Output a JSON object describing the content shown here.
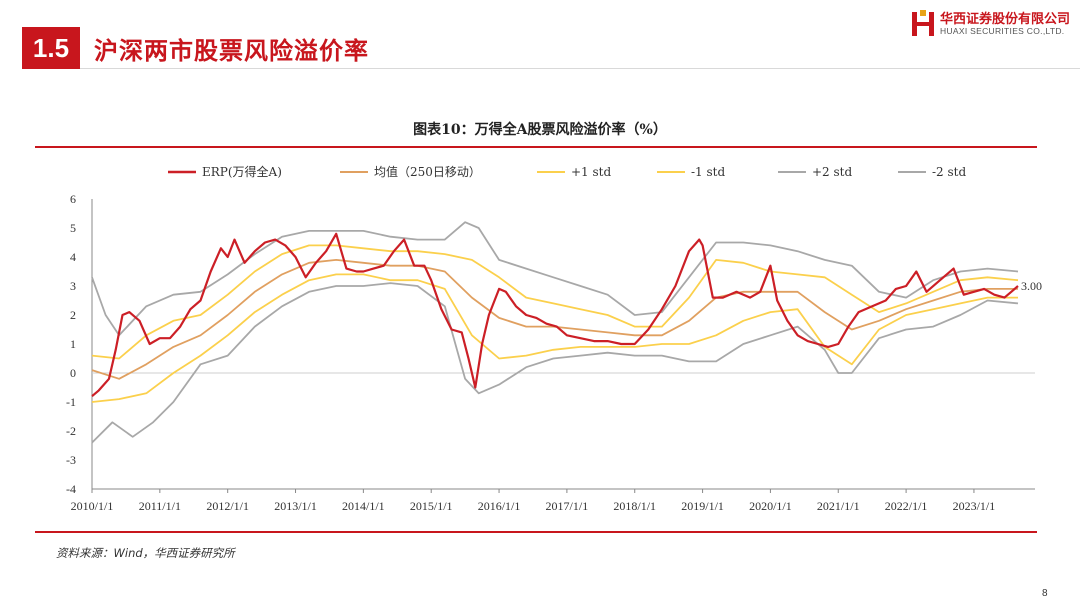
{
  "header": {
    "section_number": "1.5",
    "section_title": "沪深两市股票风险溢价率",
    "logo_cn": "华西证券股份有限公司",
    "logo_en": "HUAXI SECURITIES CO.,LTD."
  },
  "footer": {
    "source": "资料来源：Wind，华西证券研究所",
    "page_number": "8"
  },
  "colors": {
    "brand_red": "#c8161d",
    "erp": "#cc1f26",
    "mean": "#e0a060",
    "std1": "#fbd04c",
    "std2": "#a8a8a8",
    "zero_line": "#cfcfcf"
  },
  "chart_data": {
    "type": "line",
    "title": "图表10：万得全A股票风险溢价率（%）",
    "xlabel": "",
    "ylabel": "",
    "ylim": [
      -4,
      6
    ],
    "yticks": [
      "6",
      "5",
      "4",
      "3",
      "2",
      "1",
      "0",
      "-1",
      "-2",
      "-3",
      "-4"
    ],
    "xticks": [
      "2010/1/1",
      "2011/1/1",
      "2012/1/1",
      "2013/1/1",
      "2014/1/1",
      "2015/1/1",
      "2016/1/1",
      "2017/1/1",
      "2018/1/1",
      "2019/1/1",
      "2020/1/1",
      "2021/1/1",
      "2022/1/1",
      "2023/1/1"
    ],
    "xlim": [
      2010.0,
      2023.9
    ],
    "legend_position": "top",
    "end_label": "3.00",
    "series": [
      {
        "name": "ERP(万得全A)",
        "color": "#cc1f26",
        "x": [
          2010.0,
          2010.1,
          2010.25,
          2010.35,
          2010.45,
          2010.55,
          2010.7,
          2010.85,
          2011.0,
          2011.15,
          2011.3,
          2011.45,
          2011.6,
          2011.75,
          2011.9,
          2012.0,
          2012.1,
          2012.25,
          2012.4,
          2012.55,
          2012.7,
          2012.85,
          2013.0,
          2013.15,
          2013.3,
          2013.45,
          2013.6,
          2013.75,
          2013.9,
          2014.0,
          2014.15,
          2014.3,
          2014.45,
          2014.6,
          2014.75,
          2014.9,
          2015.0,
          2015.15,
          2015.3,
          2015.45,
          2015.55,
          2015.65,
          2015.75,
          2015.85,
          2016.0,
          2016.1,
          2016.25,
          2016.4,
          2016.55,
          2016.7,
          2016.85,
          2017.0,
          2017.2,
          2017.4,
          2017.6,
          2017.8,
          2018.0,
          2018.2,
          2018.4,
          2018.6,
          2018.8,
          2018.95,
          2019.0,
          2019.15,
          2019.3,
          2019.5,
          2019.7,
          2019.85,
          2020.0,
          2020.1,
          2020.25,
          2020.4,
          2020.55,
          2020.7,
          2020.85,
          2021.0,
          2021.15,
          2021.3,
          2021.5,
          2021.7,
          2021.85,
          2022.0,
          2022.15,
          2022.3,
          2022.5,
          2022.7,
          2022.85,
          2023.0,
          2023.15,
          2023.3,
          2023.45,
          2023.55,
          2023.65
        ],
        "values": [
          -0.8,
          -0.6,
          -0.2,
          0.8,
          2.0,
          2.1,
          1.8,
          1.0,
          1.2,
          1.2,
          1.6,
          2.2,
          2.5,
          3.5,
          4.3,
          4.0,
          4.6,
          3.8,
          4.2,
          4.5,
          4.6,
          4.4,
          4.0,
          3.3,
          3.8,
          4.2,
          4.8,
          3.6,
          3.5,
          3.5,
          3.6,
          3.7,
          4.2,
          4.6,
          3.7,
          3.7,
          3.2,
          2.2,
          1.5,
          1.4,
          0.5,
          -0.5,
          1.0,
          2.0,
          2.9,
          2.8,
          2.3,
          2.0,
          1.9,
          1.7,
          1.6,
          1.3,
          1.2,
          1.1,
          1.1,
          1.0,
          1.0,
          1.5,
          2.2,
          3.0,
          4.2,
          4.6,
          4.4,
          2.6,
          2.6,
          2.8,
          2.6,
          2.8,
          3.7,
          2.5,
          1.8,
          1.3,
          1.1,
          1.0,
          0.9,
          1.0,
          1.6,
          2.1,
          2.3,
          2.5,
          2.9,
          3.0,
          3.5,
          2.8,
          3.2,
          3.6,
          2.7,
          2.8,
          2.9,
          2.7,
          2.6,
          2.8,
          3.0
        ]
      },
      {
        "name": "均值（250日移动）",
        "color": "#e0a060",
        "x": [
          2010.0,
          2010.4,
          2010.8,
          2011.2,
          2011.6,
          2012.0,
          2012.4,
          2012.8,
          2013.2,
          2013.6,
          2014.0,
          2014.4,
          2014.8,
          2015.2,
          2015.6,
          2016.0,
          2016.4,
          2016.8,
          2017.2,
          2017.6,
          2018.0,
          2018.4,
          2018.8,
          2019.2,
          2019.6,
          2020.0,
          2020.4,
          2020.8,
          2021.2,
          2021.6,
          2022.0,
          2022.4,
          2022.8,
          2023.2,
          2023.65
        ],
        "values": [
          0.1,
          -0.2,
          0.3,
          0.9,
          1.3,
          2.0,
          2.8,
          3.4,
          3.8,
          3.9,
          3.8,
          3.7,
          3.7,
          3.5,
          2.6,
          1.9,
          1.6,
          1.6,
          1.5,
          1.4,
          1.3,
          1.3,
          1.8,
          2.6,
          2.8,
          2.8,
          2.8,
          2.1,
          1.5,
          1.8,
          2.2,
          2.5,
          2.8,
          2.9,
          2.9
        ]
      },
      {
        "name": "+1 std",
        "color": "#fbd04c",
        "x": [
          2010.0,
          2010.4,
          2010.8,
          2011.2,
          2011.6,
          2012.0,
          2012.4,
          2012.8,
          2013.2,
          2013.6,
          2014.0,
          2014.4,
          2014.8,
          2015.2,
          2015.6,
          2016.0,
          2016.4,
          2016.8,
          2017.2,
          2017.6,
          2018.0,
          2018.4,
          2018.8,
          2019.2,
          2019.6,
          2020.0,
          2020.4,
          2020.8,
          2021.2,
          2021.6,
          2022.0,
          2022.4,
          2022.8,
          2023.2,
          2023.65
        ],
        "values": [
          0.6,
          0.5,
          1.3,
          1.8,
          2.0,
          2.7,
          3.5,
          4.1,
          4.4,
          4.4,
          4.3,
          4.2,
          4.2,
          4.1,
          3.9,
          3.3,
          2.6,
          2.4,
          2.2,
          2.0,
          1.6,
          1.6,
          2.6,
          3.9,
          3.8,
          3.5,
          3.4,
          3.3,
          2.7,
          2.1,
          2.4,
          2.8,
          3.2,
          3.3,
          3.2
        ]
      },
      {
        "name": "-1 std",
        "color": "#fbd04c",
        "x": [
          2010.0,
          2010.4,
          2010.8,
          2011.2,
          2011.6,
          2012.0,
          2012.4,
          2012.8,
          2013.2,
          2013.6,
          2014.0,
          2014.4,
          2014.8,
          2015.2,
          2015.6,
          2016.0,
          2016.4,
          2016.8,
          2017.2,
          2017.6,
          2018.0,
          2018.4,
          2018.8,
          2019.2,
          2019.6,
          2020.0,
          2020.4,
          2020.8,
          2021.2,
          2021.6,
          2022.0,
          2022.4,
          2022.8,
          2023.2,
          2023.65
        ],
        "values": [
          -1.0,
          -0.9,
          -0.7,
          0.0,
          0.6,
          1.3,
          2.1,
          2.7,
          3.2,
          3.4,
          3.4,
          3.2,
          3.2,
          2.9,
          1.3,
          0.5,
          0.6,
          0.8,
          0.9,
          0.9,
          0.9,
          1.0,
          1.0,
          1.3,
          1.8,
          2.1,
          2.2,
          0.9,
          0.3,
          1.5,
          2.0,
          2.2,
          2.4,
          2.6,
          2.6
        ]
      },
      {
        "name": "+2 std",
        "color": "#a8a8a8",
        "x": [
          2010.0,
          2010.2,
          2010.4,
          2010.8,
          2011.2,
          2011.6,
          2012.0,
          2012.4,
          2012.8,
          2013.2,
          2013.6,
          2014.0,
          2014.4,
          2014.8,
          2015.2,
          2015.5,
          2015.7,
          2016.0,
          2016.4,
          2016.8,
          2017.2,
          2017.6,
          2018.0,
          2018.4,
          2018.8,
          2019.2,
          2019.6,
          2020.0,
          2020.4,
          2020.8,
          2021.2,
          2021.6,
          2022.0,
          2022.4,
          2022.8,
          2023.2,
          2023.65
        ],
        "values": [
          3.3,
          2.0,
          1.3,
          2.3,
          2.7,
          2.8,
          3.4,
          4.1,
          4.7,
          4.9,
          4.9,
          4.9,
          4.7,
          4.6,
          4.6,
          5.2,
          5.0,
          3.9,
          3.6,
          3.3,
          3.0,
          2.7,
          2.0,
          2.1,
          3.3,
          4.5,
          4.5,
          4.4,
          4.2,
          3.9,
          3.7,
          2.8,
          2.6,
          3.2,
          3.5,
          3.6,
          3.5
        ]
      },
      {
        "name": "-2 std",
        "color": "#a8a8a8",
        "x": [
          2010.0,
          2010.3,
          2010.6,
          2010.9,
          2011.2,
          2011.6,
          2012.0,
          2012.4,
          2012.8,
          2013.2,
          2013.6,
          2014.0,
          2014.4,
          2014.8,
          2015.2,
          2015.5,
          2015.7,
          2016.0,
          2016.4,
          2016.8,
          2017.2,
          2017.6,
          2018.0,
          2018.4,
          2018.8,
          2019.2,
          2019.6,
          2020.0,
          2020.4,
          2020.8,
          2021.0,
          2021.2,
          2021.6,
          2022.0,
          2022.4,
          2022.8,
          2023.2,
          2023.65
        ],
        "values": [
          -2.4,
          -1.7,
          -2.2,
          -1.7,
          -1.0,
          0.3,
          0.6,
          1.6,
          2.3,
          2.8,
          3.0,
          3.0,
          3.1,
          3.0,
          2.3,
          -0.2,
          -0.7,
          -0.4,
          0.2,
          0.5,
          0.6,
          0.7,
          0.6,
          0.6,
          0.4,
          0.4,
          1.0,
          1.3,
          1.6,
          0.8,
          0.0,
          0.0,
          1.2,
          1.5,
          1.6,
          2.0,
          2.5,
          2.4
        ]
      }
    ]
  }
}
